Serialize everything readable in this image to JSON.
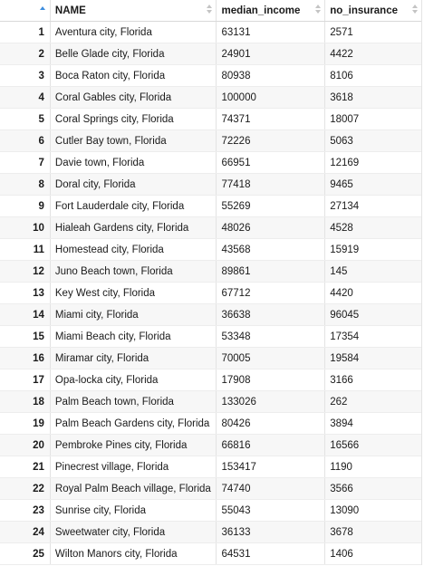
{
  "columns": [
    {
      "label": "",
      "sort": "asc"
    },
    {
      "label": "NAME",
      "sort": "none"
    },
    {
      "label": "median_income",
      "sort": "none"
    },
    {
      "label": "no_insurance",
      "sort": "none"
    }
  ],
  "rows": [
    {
      "idx": "1",
      "name": "Aventura city, Florida",
      "median_income": "63131",
      "no_insurance": "2571"
    },
    {
      "idx": "2",
      "name": "Belle Glade city, Florida",
      "median_income": "24901",
      "no_insurance": "4422"
    },
    {
      "idx": "3",
      "name": "Boca Raton city, Florida",
      "median_income": "80938",
      "no_insurance": "8106"
    },
    {
      "idx": "4",
      "name": "Coral Gables city, Florida",
      "median_income": "100000",
      "no_insurance": "3618"
    },
    {
      "idx": "5",
      "name": "Coral Springs city, Florida",
      "median_income": "74371",
      "no_insurance": "18007"
    },
    {
      "idx": "6",
      "name": "Cutler Bay town, Florida",
      "median_income": "72226",
      "no_insurance": "5063"
    },
    {
      "idx": "7",
      "name": "Davie town, Florida",
      "median_income": "66951",
      "no_insurance": "12169"
    },
    {
      "idx": "8",
      "name": "Doral city, Florida",
      "median_income": "77418",
      "no_insurance": "9465"
    },
    {
      "idx": "9",
      "name": "Fort Lauderdale city, Florida",
      "median_income": "55269",
      "no_insurance": "27134"
    },
    {
      "idx": "10",
      "name": "Hialeah Gardens city, Florida",
      "median_income": "48026",
      "no_insurance": "4528"
    },
    {
      "idx": "11",
      "name": "Homestead city, Florida",
      "median_income": "43568",
      "no_insurance": "15919"
    },
    {
      "idx": "12",
      "name": "Juno Beach town, Florida",
      "median_income": "89861",
      "no_insurance": "145"
    },
    {
      "idx": "13",
      "name": "Key West city, Florida",
      "median_income": "67712",
      "no_insurance": "4420"
    },
    {
      "idx": "14",
      "name": "Miami city, Florida",
      "median_income": "36638",
      "no_insurance": "96045"
    },
    {
      "idx": "15",
      "name": "Miami Beach city, Florida",
      "median_income": "53348",
      "no_insurance": "17354"
    },
    {
      "idx": "16",
      "name": "Miramar city, Florida",
      "median_income": "70005",
      "no_insurance": "19584"
    },
    {
      "idx": "17",
      "name": "Opa-locka city, Florida",
      "median_income": "17908",
      "no_insurance": "3166"
    },
    {
      "idx": "18",
      "name": "Palm Beach town, Florida",
      "median_income": "133026",
      "no_insurance": "262"
    },
    {
      "idx": "19",
      "name": "Palm Beach Gardens city, Florida",
      "median_income": "80426",
      "no_insurance": "3894"
    },
    {
      "idx": "20",
      "name": "Pembroke Pines city, Florida",
      "median_income": "66816",
      "no_insurance": "16566"
    },
    {
      "idx": "21",
      "name": "Pinecrest village, Florida",
      "median_income": "153417",
      "no_insurance": "1190"
    },
    {
      "idx": "22",
      "name": "Royal Palm Beach village, Florida",
      "median_income": "74740",
      "no_insurance": "3566"
    },
    {
      "idx": "23",
      "name": "Sunrise city, Florida",
      "median_income": "55043",
      "no_insurance": "13090"
    },
    {
      "idx": "24",
      "name": "Sweetwater city, Florida",
      "median_income": "36133",
      "no_insurance": "3678"
    },
    {
      "idx": "25",
      "name": "Wilton Manors city, Florida",
      "median_income": "64531",
      "no_insurance": "1406"
    }
  ]
}
